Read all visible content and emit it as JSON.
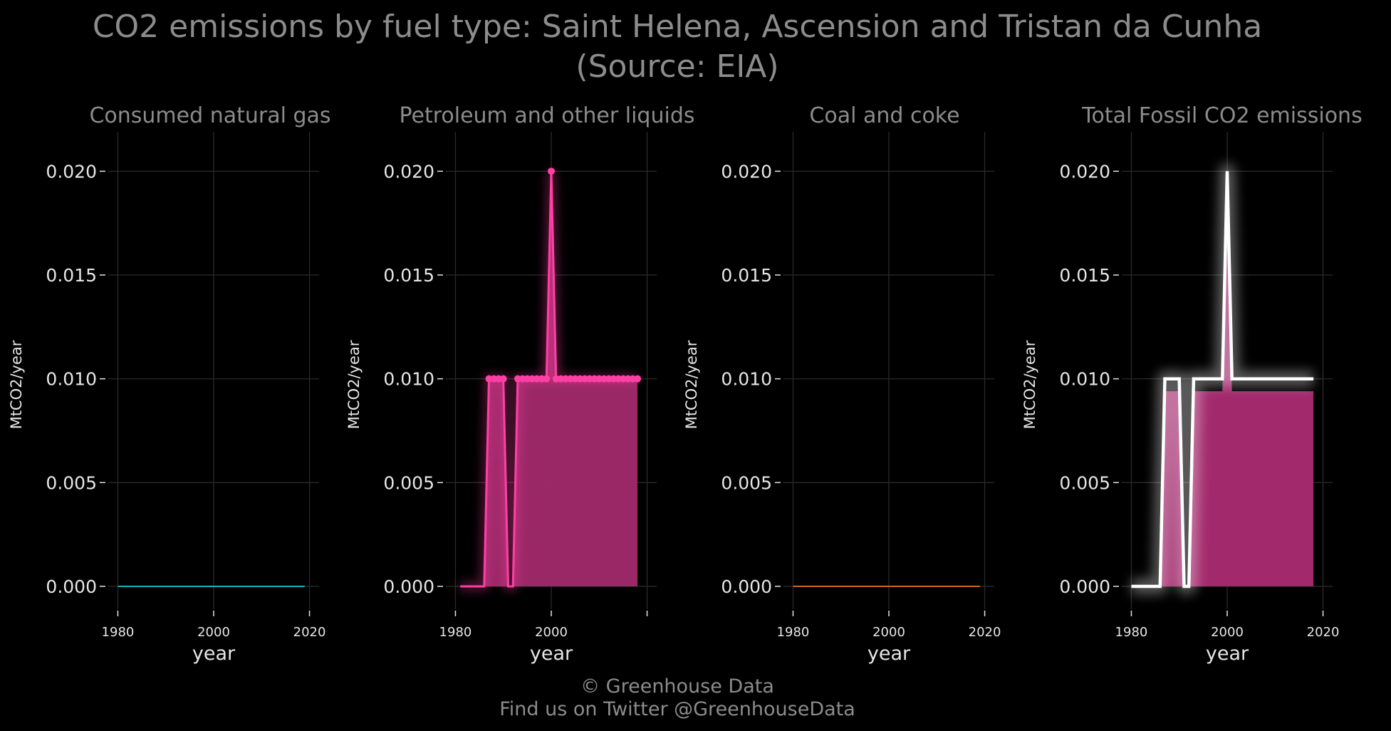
{
  "title_line1": "CO2 emissions by fuel type: Saint Helena, Ascension and Tristan da Cunha",
  "title_line2": "(Source: EIA)",
  "caption_line1": "© Greenhouse Data",
  "caption_line2": "Find us on Twitter @GreenhouseData",
  "colors": {
    "background": "#000000",
    "natural_gas": "#18b8b8",
    "petroleum": "#ff3fa4",
    "petroleum_fill": "#a22a6c",
    "coal": "#d2691e",
    "total_line": "#ffffff"
  },
  "chart_data": [
    {
      "type": "line",
      "title": "Consumed natural gas",
      "xlabel": "year",
      "ylabel": "MtCO2/year",
      "xlim": [
        1980,
        2020
      ],
      "ylim": [
        0,
        0.022
      ],
      "x_ticks": [
        "1980",
        "2000",
        "2020"
      ],
      "y_ticks": [
        "0.000",
        "0.005",
        "0.010",
        "0.015",
        "0.020"
      ],
      "grid": true,
      "series": [
        {
          "x": [
            1980,
            2019
          ],
          "y": [
            0,
            0
          ]
        }
      ]
    },
    {
      "type": "area",
      "title": "Petroleum and other liquids",
      "xlabel": "year",
      "ylabel": "MtCO2/year",
      "xlim": [
        1980,
        2020
      ],
      "ylim": [
        0,
        0.022
      ],
      "x_ticks": [
        "1980",
        "2000",
        ""
      ],
      "y_ticks": [
        "0.000",
        "0.005",
        "0.010",
        "0.015",
        "0.020"
      ],
      "grid": true,
      "series": [
        {
          "x": [
            1981,
            1982,
            1983,
            1984,
            1985,
            1986,
            1987,
            1988,
            1989,
            1990,
            1991,
            1992,
            1993,
            1994,
            1995,
            1996,
            1997,
            1998,
            1999,
            2000,
            2001,
            2002,
            2003,
            2004,
            2005,
            2006,
            2007,
            2008,
            2009,
            2010,
            2011,
            2012,
            2013,
            2014,
            2015,
            2016,
            2017,
            2018
          ],
          "y": [
            0,
            0,
            0,
            0,
            0,
            0,
            0.01,
            0.01,
            0.01,
            0.01,
            0,
            0,
            0.01,
            0.01,
            0.01,
            0.01,
            0.01,
            0.01,
            0.01,
            0.02,
            0.01,
            0.01,
            0.01,
            0.01,
            0.01,
            0.01,
            0.01,
            0.01,
            0.01,
            0.01,
            0.01,
            0.01,
            0.01,
            0.01,
            0.01,
            0.01,
            0.01,
            0.01
          ],
          "markers": [
            1987,
            1988,
            1989,
            1990,
            1993,
            1994,
            1995,
            1996,
            1997,
            1998,
            1999,
            2000,
            2001,
            2002,
            2003,
            2004,
            2005,
            2006,
            2007,
            2008,
            2009,
            2010,
            2011,
            2012,
            2013,
            2014,
            2015,
            2016,
            2017,
            2018
          ]
        }
      ]
    },
    {
      "type": "line",
      "title": "Coal and coke",
      "xlabel": "year",
      "ylabel": "MtCO2/year",
      "xlim": [
        1980,
        2020
      ],
      "ylim": [
        0,
        0.022
      ],
      "x_ticks": [
        "1980",
        "2000",
        "2020"
      ],
      "y_ticks": [
        "0.000",
        "0.005",
        "0.010",
        "0.015",
        "0.020"
      ],
      "grid": true,
      "series": [
        {
          "x": [
            1980,
            2019
          ],
          "y": [
            0,
            0
          ]
        }
      ]
    },
    {
      "type": "area",
      "title": "Total Fossil CO2 emissions",
      "xlabel": "year",
      "ylabel": "MtCO2/year",
      "xlim": [
        1980,
        2020
      ],
      "ylim": [
        0,
        0.022
      ],
      "x_ticks": [
        "1980",
        "2000",
        "2020"
      ],
      "y_ticks": [
        "0.000",
        "0.005",
        "0.010",
        "0.015",
        "0.020"
      ],
      "grid": true,
      "series": [
        {
          "x": [
            1980,
            1981,
            1982,
            1983,
            1984,
            1985,
            1986,
            1987,
            1988,
            1989,
            1990,
            1991,
            1992,
            1993,
            1994,
            1995,
            1996,
            1997,
            1998,
            1999,
            2000,
            2001,
            2002,
            2003,
            2004,
            2005,
            2006,
            2007,
            2008,
            2009,
            2010,
            2011,
            2012,
            2013,
            2014,
            2015,
            2016,
            2017,
            2018
          ],
          "y": [
            0,
            0,
            0,
            0,
            0,
            0,
            0,
            0.01,
            0.01,
            0.01,
            0.01,
            0,
            0,
            0.01,
            0.01,
            0.01,
            0.01,
            0.01,
            0.01,
            0.01,
            0.02,
            0.01,
            0.01,
            0.01,
            0.01,
            0.01,
            0.01,
            0.01,
            0.01,
            0.01,
            0.01,
            0.01,
            0.01,
            0.01,
            0.01,
            0.01,
            0.01,
            0.01,
            0.01
          ]
        }
      ]
    }
  ]
}
